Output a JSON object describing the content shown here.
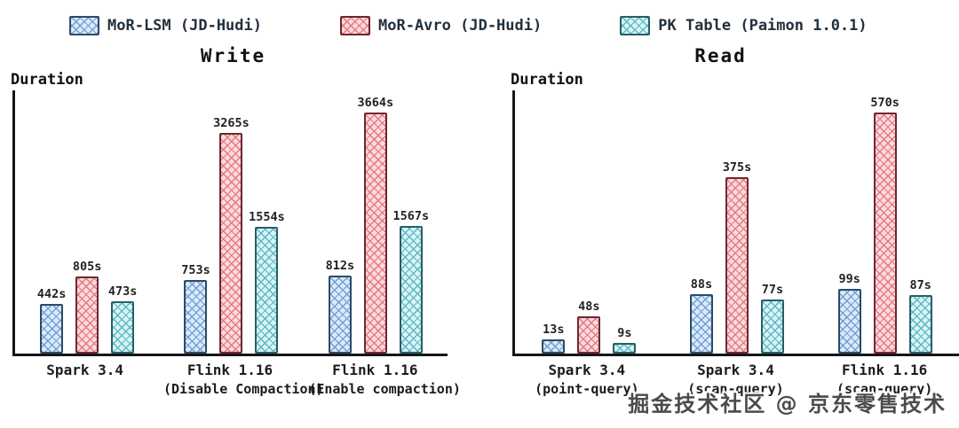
{
  "legend": {
    "items": [
      {
        "name": "mor-lsm",
        "label": "MoR-LSM (JD-Hudi)",
        "fill": "#dbe9f8",
        "hatch": "#6f9fd6",
        "border": "#2e4a66"
      },
      {
        "name": "mor-avro",
        "label": "MoR-Avro (JD-Hudi)",
        "fill": "#fadadd",
        "hatch": "#e4787f",
        "border": "#6e2733"
      },
      {
        "name": "pk-table",
        "label": "PK Table (Paimon 1.0.1)",
        "fill": "#def2f4",
        "hatch": "#54bac7",
        "border": "#275f68"
      }
    ]
  },
  "watermark": "掘金技术社区 @ 京东零售技术",
  "chart_data": [
    {
      "type": "bar",
      "title": "Write",
      "ylabel": "Duration",
      "unit": "s",
      "grid": false,
      "legend_position": "top",
      "ylim": [
        0,
        3664
      ],
      "groups": [
        {
          "label": "Spark 3.4",
          "sublabel": ""
        },
        {
          "label": "Flink 1.16",
          "sublabel": "(Disable Compaction)"
        },
        {
          "label": "Flink 1.16",
          "sublabel": "(Enable compaction)"
        }
      ],
      "series": [
        {
          "name": "MoR-LSM (JD-Hudi)",
          "values": [
            442,
            753,
            812
          ]
        },
        {
          "name": "MoR-Avro (JD-Hudi)",
          "values": [
            805,
            3265,
            3664
          ]
        },
        {
          "name": "PK Table (Paimon 1.0.1)",
          "values": [
            473,
            1554,
            1567
          ]
        }
      ]
    },
    {
      "type": "bar",
      "title": "Read",
      "ylabel": "Duration",
      "unit": "s",
      "grid": false,
      "legend_position": "top",
      "ylim": [
        0,
        570
      ],
      "groups": [
        {
          "label": "Spark 3.4",
          "sublabel": "(point-query)"
        },
        {
          "label": "Spark 3.4",
          "sublabel": "(scan-query)"
        },
        {
          "label": "Flink 1.16",
          "sublabel": "(scan-query)"
        }
      ],
      "series": [
        {
          "name": "MoR-LSM (JD-Hudi)",
          "values": [
            13,
            88,
            99
          ]
        },
        {
          "name": "MoR-Avro (JD-Hudi)",
          "values": [
            48,
            375,
            570
          ]
        },
        {
          "name": "PK Table (Paimon 1.0.1)",
          "values": [
            9,
            77,
            87
          ]
        }
      ]
    }
  ]
}
